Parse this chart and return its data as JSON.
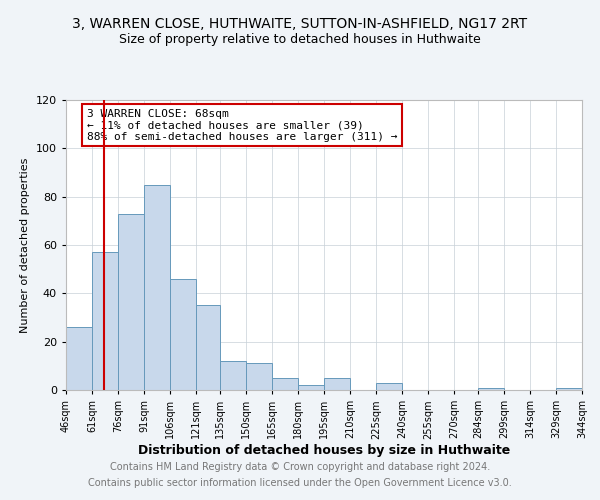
{
  "title": "3, WARREN CLOSE, HUTHWAITE, SUTTON-IN-ASHFIELD, NG17 2RT",
  "subtitle": "Size of property relative to detached houses in Huthwaite",
  "xlabel": "Distribution of detached houses by size in Huthwaite",
  "ylabel": "Number of detached properties",
  "footer_line1": "Contains HM Land Registry data © Crown copyright and database right 2024.",
  "footer_line2": "Contains public sector information licensed under the Open Government Licence v3.0.",
  "annotation_line1": "3 WARREN CLOSE: 68sqm",
  "annotation_line2": "← 11% of detached houses are smaller (39)",
  "annotation_line3": "88% of semi-detached houses are larger (311) →",
  "bar_left_edges": [
    46,
    61,
    76,
    91,
    106,
    121,
    135,
    150,
    165,
    180,
    195,
    210,
    225,
    240,
    255,
    270,
    284,
    299,
    314,
    329
  ],
  "bar_widths": [
    15,
    15,
    15,
    15,
    15,
    14,
    15,
    15,
    15,
    15,
    15,
    15,
    15,
    15,
    15,
    14,
    15,
    15,
    15,
    15
  ],
  "bar_heights": [
    26,
    57,
    73,
    85,
    46,
    35,
    12,
    11,
    5,
    2,
    5,
    0,
    3,
    0,
    0,
    0,
    1,
    0,
    0,
    1
  ],
  "xtick_labels": [
    "46sqm",
    "61sqm",
    "76sqm",
    "91sqm",
    "106sqm",
    "121sqm",
    "135sqm",
    "150sqm",
    "165sqm",
    "180sqm",
    "195sqm",
    "210sqm",
    "225sqm",
    "240sqm",
    "255sqm",
    "270sqm",
    "284sqm",
    "299sqm",
    "314sqm",
    "329sqm",
    "344sqm"
  ],
  "xtick_positions": [
    46,
    61,
    76,
    91,
    106,
    121,
    135,
    150,
    165,
    180,
    195,
    210,
    225,
    240,
    255,
    270,
    284,
    299,
    314,
    329,
    344
  ],
  "xlim": [
    46,
    344
  ],
  "ylim": [
    0,
    120
  ],
  "yticks": [
    0,
    20,
    40,
    60,
    80,
    100,
    120
  ],
  "bar_color": "#c8d8eb",
  "bar_edge_color": "#6699bb",
  "red_line_x": 68,
  "background_color": "#f0f4f8",
  "plot_bg_color": "#ffffff",
  "annotation_box_edge": "#cc0000",
  "red_line_color": "#cc0000",
  "title_fontsize": 10,
  "subtitle_fontsize": 9,
  "xlabel_fontsize": 9,
  "ylabel_fontsize": 8,
  "footer_fontsize": 7,
  "annotation_fontsize": 8,
  "xtick_fontsize": 7,
  "ytick_fontsize": 8
}
